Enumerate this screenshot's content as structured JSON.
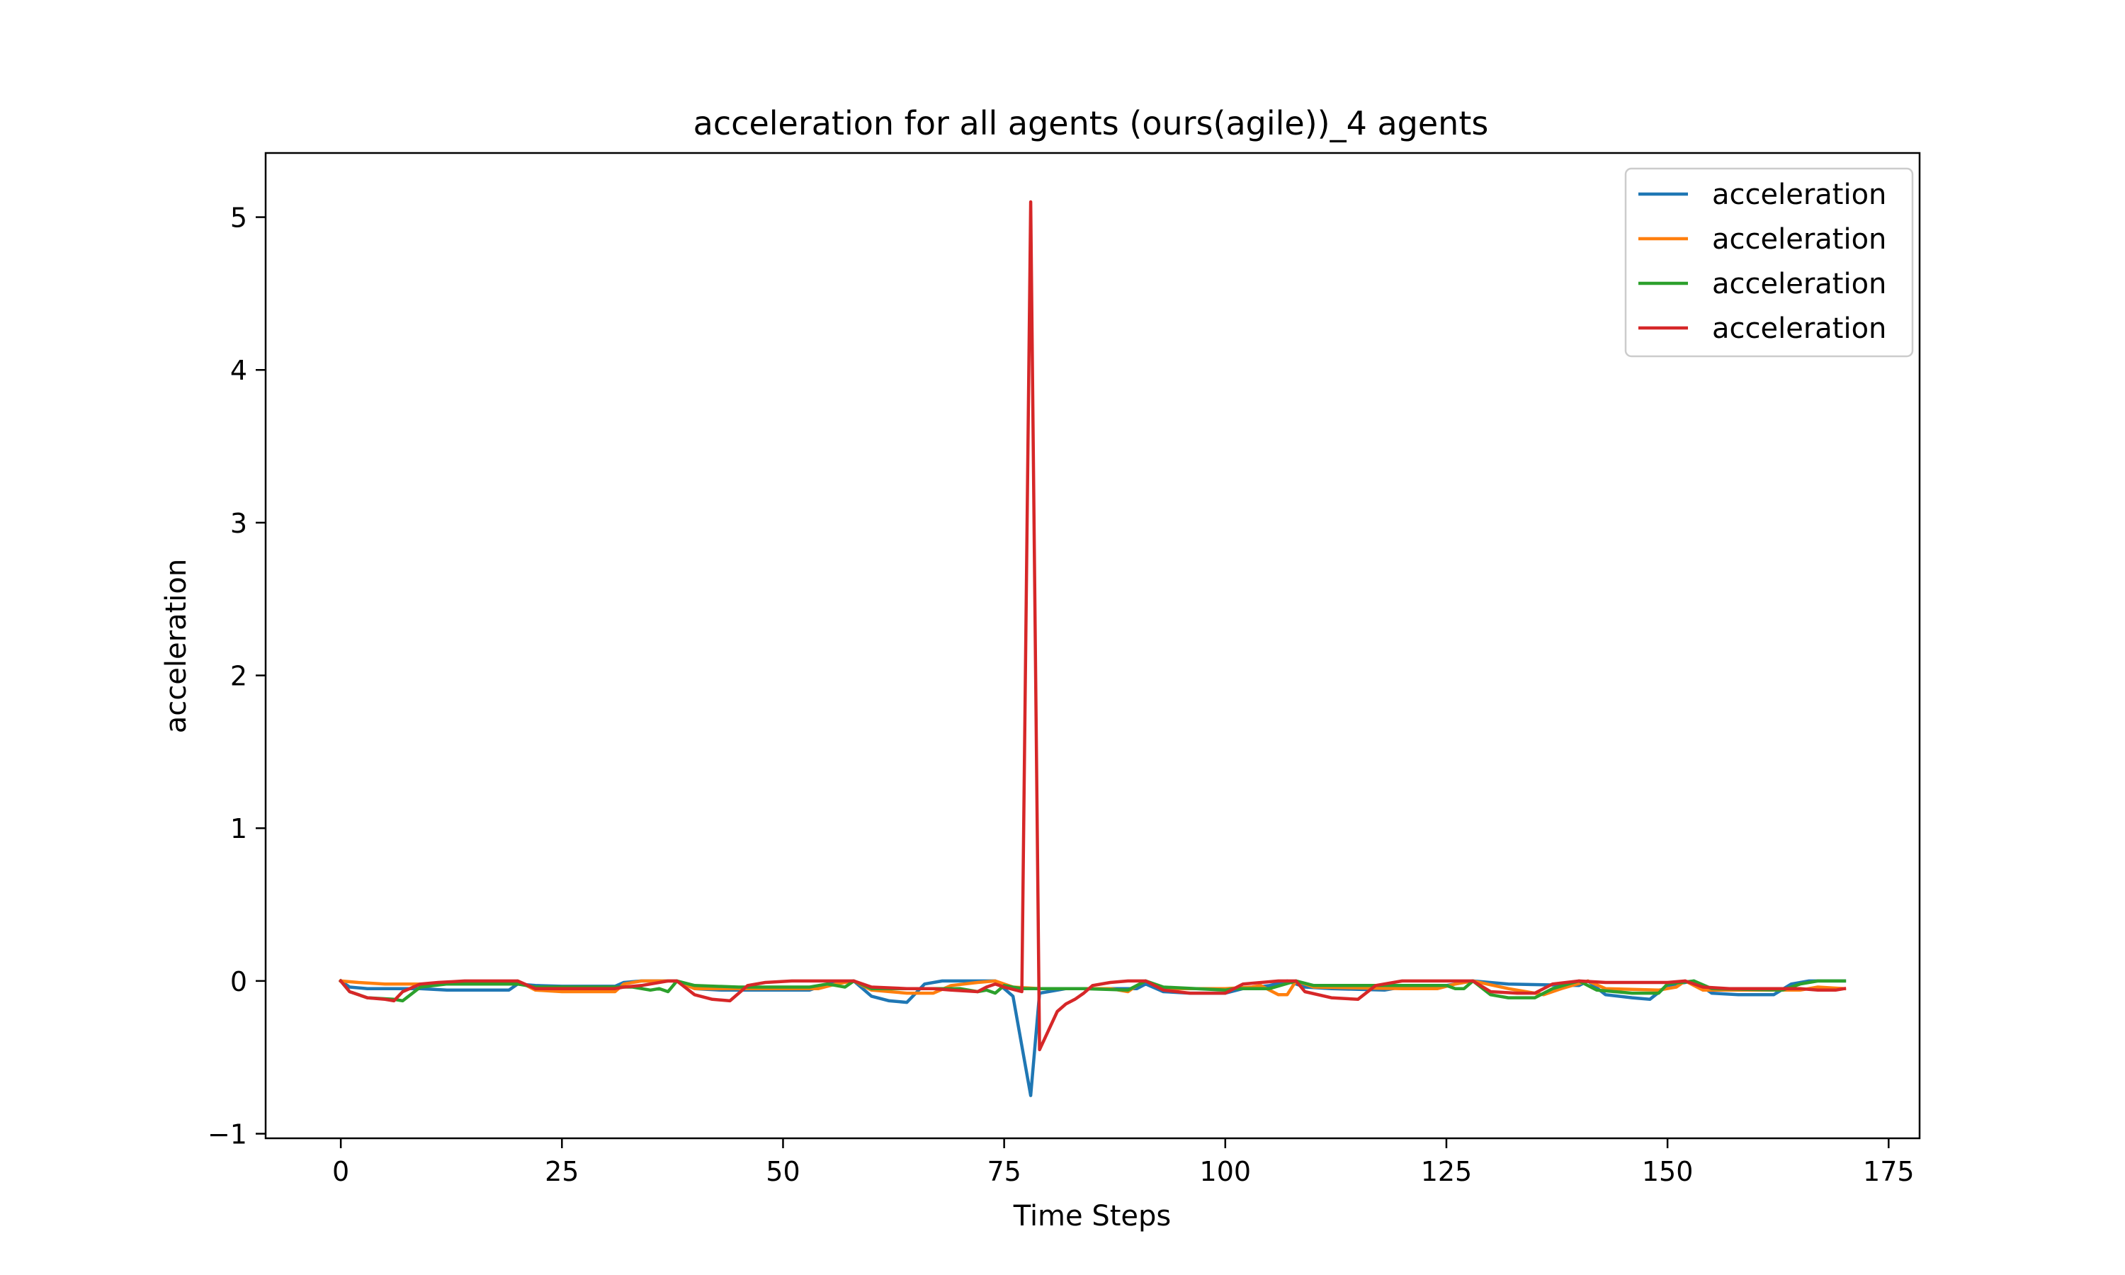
{
  "chart_data": {
    "type": "line",
    "title": "acceleration for all agents (ours(agile))_4 agents",
    "xlabel": "Time Steps",
    "ylabel": "acceleration",
    "xlim": [
      -8.5,
      178.5
    ],
    "ylim": [
      -1.03,
      5.42
    ],
    "xticks": [
      0,
      25,
      50,
      75,
      100,
      125,
      150,
      175
    ],
    "xtick_labels": [
      "0",
      "25",
      "50",
      "75",
      "100",
      "125",
      "150",
      "175"
    ],
    "yticks": [
      -1,
      0,
      1,
      2,
      3,
      4,
      5
    ],
    "ytick_labels": [
      "−1",
      "0",
      "1",
      "2",
      "3",
      "4",
      "5"
    ],
    "grid": false,
    "legend_position": "top-right",
    "series": [
      {
        "name": "acceleration",
        "color": "#1f77b4",
        "points": [
          [
            0,
            0
          ],
          [
            1,
            -0.04
          ],
          [
            3,
            -0.05
          ],
          [
            6,
            -0.05
          ],
          [
            9,
            -0.05
          ],
          [
            12,
            -0.06
          ],
          [
            16,
            -0.06
          ],
          [
            19,
            -0.06
          ],
          [
            20,
            -0.02
          ],
          [
            22,
            -0.03
          ],
          [
            25,
            -0.035
          ],
          [
            31,
            -0.035
          ],
          [
            32,
            -0.01
          ],
          [
            34,
            0
          ],
          [
            37,
            0
          ],
          [
            38,
            0
          ],
          [
            40,
            -0.05
          ],
          [
            43,
            -0.06
          ],
          [
            50,
            -0.06
          ],
          [
            53,
            -0.06
          ],
          [
            55,
            -0.02
          ],
          [
            58,
            0
          ],
          [
            60,
            -0.1
          ],
          [
            62,
            -0.13
          ],
          [
            64,
            -0.14
          ],
          [
            66,
            -0.02
          ],
          [
            68,
            0
          ],
          [
            74,
            0
          ],
          [
            76,
            -0.1
          ],
          [
            78,
            -0.75
          ],
          [
            79,
            -0.08
          ],
          [
            82,
            -0.05
          ],
          [
            86,
            -0.05
          ],
          [
            90,
            -0.05
          ],
          [
            91,
            -0.02
          ],
          [
            93,
            -0.07
          ],
          [
            96,
            -0.08
          ],
          [
            100,
            -0.08
          ],
          [
            102,
            -0.05
          ],
          [
            105,
            -0.03
          ],
          [
            107,
            0
          ],
          [
            109,
            -0.04
          ],
          [
            112,
            -0.05
          ],
          [
            118,
            -0.06
          ],
          [
            121,
            -0.03
          ],
          [
            125,
            -0.03
          ],
          [
            128,
            0
          ],
          [
            132,
            -0.02
          ],
          [
            140,
            -0.03
          ],
          [
            141,
            0
          ],
          [
            143,
            -0.09
          ],
          [
            146,
            -0.11
          ],
          [
            148,
            -0.12
          ],
          [
            150,
            -0.03
          ],
          [
            153,
            0
          ],
          [
            155,
            -0.08
          ],
          [
            158,
            -0.09
          ],
          [
            162,
            -0.09
          ],
          [
            164,
            -0.02
          ],
          [
            166,
            0
          ],
          [
            168,
            0
          ],
          [
            170,
            0
          ]
        ]
      },
      {
        "name": "acceleration",
        "color": "#ff7f0e",
        "points": [
          [
            0,
            0
          ],
          [
            2,
            -0.01
          ],
          [
            5,
            -0.02
          ],
          [
            10,
            -0.02
          ],
          [
            15,
            -0.02
          ],
          [
            19,
            -0.02
          ],
          [
            20,
            0
          ],
          [
            22,
            -0.06
          ],
          [
            25,
            -0.07
          ],
          [
            31,
            -0.07
          ],
          [
            32,
            -0.02
          ],
          [
            34,
            0
          ],
          [
            37,
            0
          ],
          [
            38,
            0
          ],
          [
            40,
            -0.05
          ],
          [
            44,
            -0.05
          ],
          [
            50,
            -0.05
          ],
          [
            54,
            -0.05
          ],
          [
            56,
            -0.02
          ],
          [
            58,
            0
          ],
          [
            60,
            -0.06
          ],
          [
            64,
            -0.08
          ],
          [
            67,
            -0.08
          ],
          [
            69,
            -0.03
          ],
          [
            72,
            -0.01
          ],
          [
            74,
            0
          ],
          [
            76,
            -0.04
          ],
          [
            79,
            -0.05
          ],
          [
            85,
            -0.05
          ],
          [
            87,
            -0.05
          ],
          [
            89,
            -0.07
          ],
          [
            90,
            -0.03
          ],
          [
            91,
            0
          ],
          [
            93,
            -0.05
          ],
          [
            100,
            -0.05
          ],
          [
            103,
            -0.04
          ],
          [
            104,
            -0.03
          ],
          [
            106,
            -0.09
          ],
          [
            107,
            -0.09
          ],
          [
            108,
            0
          ],
          [
            110,
            -0.04
          ],
          [
            120,
            -0.05
          ],
          [
            124,
            -0.05
          ],
          [
            126,
            -0.02
          ],
          [
            128,
            0
          ],
          [
            132,
            -0.05
          ],
          [
            135,
            -0.08
          ],
          [
            136,
            -0.09
          ],
          [
            138,
            -0.05
          ],
          [
            141,
            0
          ],
          [
            143,
            -0.05
          ],
          [
            149,
            -0.06
          ],
          [
            151,
            -0.04
          ],
          [
            152,
            0
          ],
          [
            154,
            -0.06
          ],
          [
            165,
            -0.06
          ],
          [
            167,
            -0.04
          ],
          [
            170,
            -0.05
          ]
        ]
      },
      {
        "name": "acceleration",
        "color": "#2ca02c",
        "points": [
          [
            0,
            0
          ],
          [
            1,
            -0.07
          ],
          [
            3,
            -0.11
          ],
          [
            6,
            -0.12
          ],
          [
            7,
            -0.13
          ],
          [
            9,
            -0.04
          ],
          [
            12,
            -0.02
          ],
          [
            20,
            -0.02
          ],
          [
            22,
            -0.04
          ],
          [
            30,
            -0.04
          ],
          [
            33,
            -0.04
          ],
          [
            35,
            -0.06
          ],
          [
            36,
            -0.05
          ],
          [
            37,
            -0.07
          ],
          [
            38,
            0
          ],
          [
            40,
            -0.03
          ],
          [
            45,
            -0.04
          ],
          [
            53,
            -0.04
          ],
          [
            55,
            -0.02
          ],
          [
            56,
            -0.03
          ],
          [
            57,
            -0.04
          ],
          [
            58,
            0
          ],
          [
            60,
            -0.05
          ],
          [
            67,
            -0.05
          ],
          [
            70,
            -0.05
          ],
          [
            72,
            -0.07
          ],
          [
            73,
            -0.06
          ],
          [
            74,
            -0.08
          ],
          [
            75,
            -0.03
          ],
          [
            77,
            -0.05
          ],
          [
            84,
            -0.05
          ],
          [
            89,
            -0.06
          ],
          [
            91,
            0
          ],
          [
            93,
            -0.04
          ],
          [
            100,
            -0.06
          ],
          [
            101,
            -0.05
          ],
          [
            105,
            -0.05
          ],
          [
            108,
            0
          ],
          [
            110,
            -0.03
          ],
          [
            120,
            -0.03
          ],
          [
            125,
            -0.03
          ],
          [
            126,
            -0.05
          ],
          [
            127,
            -0.05
          ],
          [
            128,
            0
          ],
          [
            130,
            -0.09
          ],
          [
            132,
            -0.11
          ],
          [
            135,
            -0.11
          ],
          [
            137,
            -0.05
          ],
          [
            140,
            0
          ],
          [
            142,
            -0.06
          ],
          [
            146,
            -0.08
          ],
          [
            149,
            -0.08
          ],
          [
            150,
            -0.02
          ],
          [
            153,
            0
          ],
          [
            155,
            -0.05
          ],
          [
            163,
            -0.06
          ],
          [
            165,
            -0.02
          ],
          [
            167,
            0
          ],
          [
            170,
            0
          ]
        ]
      },
      {
        "name": "acceleration",
        "color": "#d62728",
        "points": [
          [
            0,
            0
          ],
          [
            1,
            -0.07
          ],
          [
            3,
            -0.11
          ],
          [
            5,
            -0.12
          ],
          [
            6,
            -0.13
          ],
          [
            7,
            -0.07
          ],
          [
            9,
            -0.02
          ],
          [
            11,
            -0.01
          ],
          [
            14,
            0
          ],
          [
            17,
            0
          ],
          [
            20,
            0
          ],
          [
            22,
            -0.05
          ],
          [
            25,
            -0.05
          ],
          [
            31,
            -0.05
          ],
          [
            32,
            -0.04
          ],
          [
            34,
            -0.03
          ],
          [
            35,
            -0.02
          ],
          [
            37,
            0
          ],
          [
            38,
            0
          ],
          [
            40,
            -0.09
          ],
          [
            42,
            -0.12
          ],
          [
            44,
            -0.13
          ],
          [
            46,
            -0.03
          ],
          [
            48,
            -0.01
          ],
          [
            51,
            0
          ],
          [
            58,
            0
          ],
          [
            60,
            -0.04
          ],
          [
            64,
            -0.05
          ],
          [
            67,
            -0.05
          ],
          [
            69,
            -0.06
          ],
          [
            72,
            -0.07
          ],
          [
            73,
            -0.04
          ],
          [
            74,
            -0.02
          ],
          [
            75,
            -0.04
          ],
          [
            77,
            -0.07
          ],
          [
            78,
            5.1
          ],
          [
            79,
            -0.45
          ],
          [
            81,
            -0.2
          ],
          [
            82,
            -0.15
          ],
          [
            83,
            -0.12
          ],
          [
            84,
            -0.08
          ],
          [
            85,
            -0.03
          ],
          [
            87,
            -0.01
          ],
          [
            89,
            0
          ],
          [
            91,
            0
          ],
          [
            93,
            -0.06
          ],
          [
            96,
            -0.08
          ],
          [
            100,
            -0.08
          ],
          [
            102,
            -0.02
          ],
          [
            106,
            0
          ],
          [
            108,
            0
          ],
          [
            109,
            -0.07
          ],
          [
            112,
            -0.11
          ],
          [
            115,
            -0.12
          ],
          [
            117,
            -0.03
          ],
          [
            120,
            0
          ],
          [
            128,
            0
          ],
          [
            130,
            -0.07
          ],
          [
            133,
            -0.08
          ],
          [
            135,
            -0.08
          ],
          [
            137,
            -0.02
          ],
          [
            140,
            0
          ],
          [
            143,
            -0.01
          ],
          [
            150,
            -0.01
          ],
          [
            152,
            0
          ],
          [
            154,
            -0.04
          ],
          [
            157,
            -0.05
          ],
          [
            163,
            -0.05
          ],
          [
            165,
            -0.05
          ],
          [
            167,
            -0.06
          ],
          [
            169,
            -0.06
          ],
          [
            170,
            -0.05
          ]
        ]
      }
    ]
  }
}
